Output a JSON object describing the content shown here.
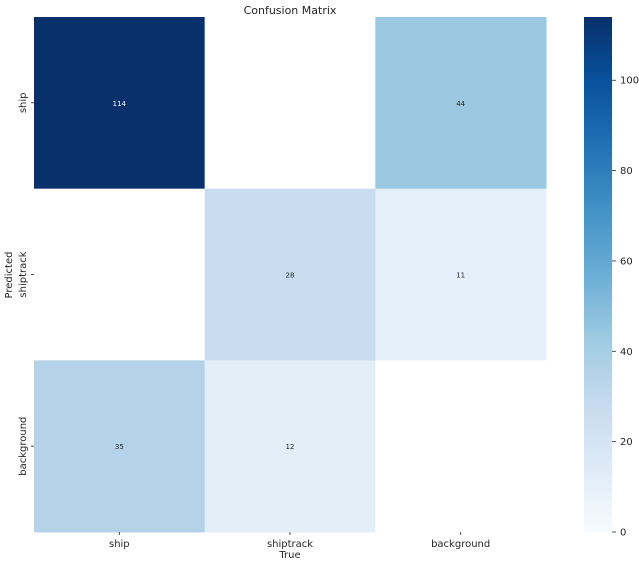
{
  "chart_data": {
    "type": "heatmap",
    "title": "Confusion Matrix",
    "xlabel": "True",
    "ylabel": "Predicted",
    "x_categories": [
      "ship",
      "shiptrack",
      "background"
    ],
    "y_categories": [
      "ship",
      "shiptrack",
      "background"
    ],
    "values": [
      [
        114,
        null,
        44
      ],
      [
        null,
        28,
        11
      ],
      [
        35,
        12,
        null
      ]
    ],
    "cell_labels": [
      [
        "114",
        "",
        "44"
      ],
      [
        "",
        "28",
        "11"
      ],
      [
        "35",
        "12",
        ""
      ]
    ],
    "colorscale": "Blues",
    "colorbar": {
      "min": 0,
      "max": 114,
      "ticks": [
        0,
        20,
        40,
        60,
        80,
        100
      ],
      "tick_labels": [
        "0",
        "20",
        "40",
        "60",
        "80",
        "100"
      ]
    },
    "empty_cell_color": "#ffffff",
    "grid": false
  }
}
